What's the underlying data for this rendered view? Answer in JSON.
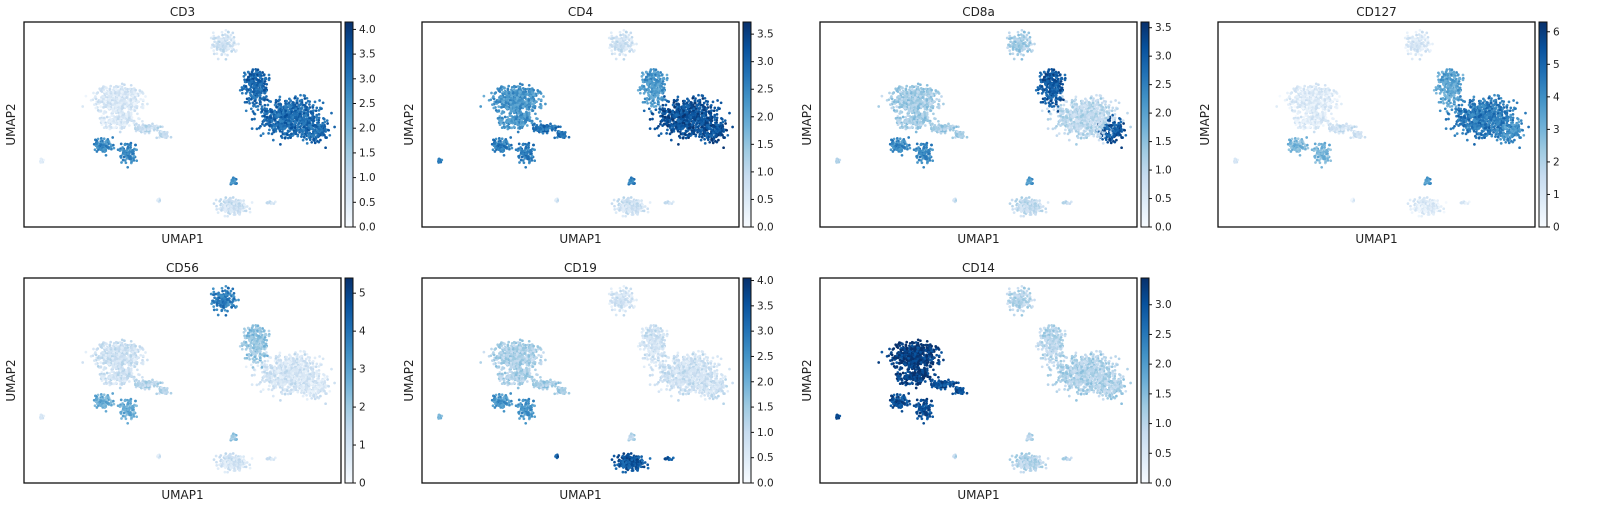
{
  "figure": {
    "type": "scatter",
    "colormap": "Blues",
    "colormap_stops": [
      "#f7fbff",
      "#deebf7",
      "#c6dbef",
      "#9ecae1",
      "#6baed6",
      "#4292c6",
      "#2171b5",
      "#08519c",
      "#08306b"
    ]
  },
  "chart_data": [
    {
      "type": "scatter",
      "title": "CD3",
      "xlabel": "UMAP1",
      "ylabel": "UMAP2",
      "colorbar_range": [
        0,
        4.15
      ],
      "colorbar_ticks": [
        "0.0",
        "0.5",
        "1.0",
        "1.5",
        "2.0",
        "2.5",
        "3.0",
        "3.5",
        "4.0"
      ],
      "levels": {
        "myeloid": 0.15,
        "cd14_tail": 0.25,
        "left_lobe": 0.65,
        "small_left": 0.1,
        "b_cluster": 0.2,
        "b_top": 0.65,
        "nk_top": 0.2,
        "tcell_neck": 0.8,
        "tcell_body": 0.78,
        "tcell_right": 0.78
      }
    },
    {
      "type": "scatter",
      "title": "CD4",
      "xlabel": "UMAP1",
      "ylabel": "UMAP2",
      "colorbar_range": [
        0,
        3.72
      ],
      "colorbar_ticks": [
        "0.0",
        "0.5",
        "1.0",
        "1.5",
        "2.0",
        "2.5",
        "3.0",
        "3.5"
      ],
      "levels": {
        "myeloid": 0.6,
        "cd14_tail": 0.75,
        "left_lobe": 0.7,
        "small_left": 0.7,
        "b_cluster": 0.2,
        "b_top": 0.7,
        "nk_top": 0.2,
        "tcell_neck": 0.6,
        "tcell_body": 0.88,
        "tcell_right": 0.88
      }
    },
    {
      "type": "scatter",
      "title": "CD8a",
      "xlabel": "UMAP1",
      "ylabel": "UMAP2",
      "colorbar_range": [
        0,
        3.6
      ],
      "colorbar_ticks": [
        "0.0",
        "0.5",
        "1.0",
        "1.5",
        "2.0",
        "2.5",
        "3.0",
        "3.5"
      ],
      "levels": {
        "myeloid": 0.35,
        "cd14_tail": 0.35,
        "left_lobe": 0.65,
        "small_left": 0.3,
        "b_cluster": 0.25,
        "b_top": 0.6,
        "nk_top": 0.35,
        "tcell_neck": 0.85,
        "tcell_body": 0.28,
        "tcell_right": 0.85
      }
    },
    {
      "type": "scatter",
      "title": "CD127",
      "xlabel": "UMAP1",
      "ylabel": "UMAP2",
      "colorbar_range": [
        0,
        6.3
      ],
      "colorbar_ticks": [
        "0",
        "1",
        "2",
        "3",
        "4",
        "5",
        "6"
      ],
      "levels": {
        "myeloid": 0.12,
        "cd14_tail": 0.2,
        "left_lobe": 0.45,
        "small_left": 0.15,
        "b_cluster": 0.12,
        "b_top": 0.6,
        "nk_top": 0.15,
        "tcell_neck": 0.55,
        "tcell_body": 0.72,
        "tcell_right": 0.62
      }
    },
    {
      "type": "scatter",
      "title": "CD56",
      "xlabel": "UMAP1",
      "ylabel": "UMAP2",
      "colorbar_range": [
        0,
        5.4
      ],
      "colorbar_ticks": [
        "0",
        "1",
        "2",
        "3",
        "4",
        "5"
      ],
      "levels": {
        "myeloid": 0.2,
        "cd14_tail": 0.3,
        "left_lobe": 0.5,
        "small_left": 0.15,
        "b_cluster": 0.18,
        "b_top": 0.4,
        "nk_top": 0.7,
        "tcell_neck": 0.4,
        "tcell_body": 0.18,
        "tcell_right": 0.15
      }
    },
    {
      "type": "scatter",
      "title": "CD19",
      "xlabel": "UMAP1",
      "ylabel": "UMAP2",
      "colorbar_range": [
        0,
        4.05
      ],
      "colorbar_ticks": [
        "0.0",
        "0.5",
        "1.0",
        "1.5",
        "2.0",
        "2.5",
        "3.0",
        "3.5",
        "4.0"
      ],
      "levels": {
        "myeloid": 0.32,
        "cd14_tail": 0.35,
        "left_lobe": 0.6,
        "small_left": 0.45,
        "b_cluster": 0.85,
        "b_top": 0.3,
        "nk_top": 0.18,
        "tcell_neck": 0.2,
        "tcell_body": 0.2,
        "tcell_right": 0.2
      }
    },
    {
      "type": "scatter",
      "title": "CD14",
      "xlabel": "UMAP1",
      "ylabel": "UMAP2",
      "colorbar_range": [
        0,
        3.45
      ],
      "colorbar_ticks": [
        "0.0",
        "0.5",
        "1.0",
        "1.5",
        "2.0",
        "2.5",
        "3.0"
      ],
      "levels": {
        "myeloid": 0.95,
        "cd14_tail": 0.88,
        "left_lobe": 0.88,
        "small_left": 0.9,
        "b_cluster": 0.3,
        "b_top": 0.3,
        "nk_top": 0.3,
        "tcell_neck": 0.3,
        "tcell_body": 0.32,
        "tcell_right": 0.32
      }
    }
  ]
}
